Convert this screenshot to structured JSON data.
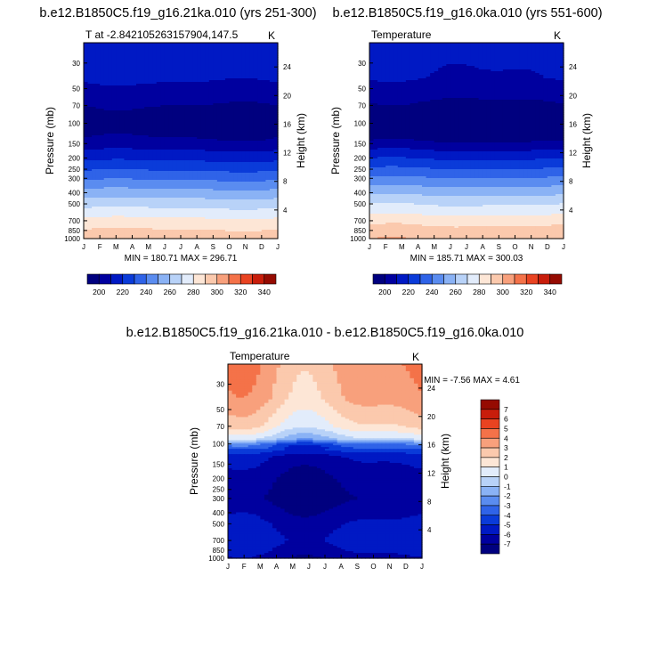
{
  "panels": [
    {
      "title": "b.e12.B1850C5.f19_g16.21ka.010 (yrs 251-300)",
      "left_label": "T at -2.842105263157904,147.5",
      "right_label": "K",
      "ylabel": "Pressure (mb)",
      "ylabel_right": "Height (km)",
      "minmax": "MIN = 180.71 MAX = 296.71"
    },
    {
      "title": "b.e12.B1850C5.f19_g16.0ka.010 (yrs 551-600)",
      "left_label": "Temperature",
      "right_label": "K",
      "ylabel": "Pressure (mb)",
      "ylabel_right": "Height (km)",
      "minmax": "MIN = 185.71 MAX = 300.03"
    },
    {
      "title": "b.e12.B1850C5.f19_g16.21ka.010 - b.e12.B1850C5.f19_g16.0ka.010",
      "left_label": "Temperature",
      "right_label": "K",
      "ylabel": "Pressure (mb)",
      "ylabel_right": "Height (km)",
      "minmax": "MIN =  -7.56 MAX =   4.61"
    }
  ],
  "chart_data": [
    {
      "type": "heatmap",
      "subtype": "filled-contour",
      "x_categories": [
        "J",
        "F",
        "M",
        "A",
        "M",
        "J",
        "J",
        "A",
        "S",
        "O",
        "N",
        "D",
        "J"
      ],
      "y_ticks_pressure": [
        30,
        50,
        70,
        100,
        150,
        200,
        250,
        300,
        400,
        500,
        700,
        850,
        1000
      ],
      "y_ticks_height_km": [
        24,
        20,
        16,
        12,
        8,
        4
      ],
      "levels": [
        200,
        210,
        220,
        230,
        240,
        250,
        260,
        270,
        280,
        290,
        300,
        310,
        320,
        330,
        340
      ],
      "colorbar_labels": [
        "200",
        "220",
        "240",
        "260",
        "280",
        "300",
        "320",
        "340"
      ],
      "palette": [
        "#00007f",
        "#00009f",
        "#0019c4",
        "#0a3bd9",
        "#2f63e8",
        "#5a8cf0",
        "#8ab2f5",
        "#b8d2f8",
        "#e2ecfb",
        "#fde6d6",
        "#fbc9ad",
        "#f8a07c",
        "#f47249",
        "#e94321",
        "#c81d0b",
        "#950b02"
      ],
      "profile_by_pressure": [
        {
          "p": 20,
          "T": 216
        },
        {
          "p": 40,
          "T": 212
        },
        {
          "p": 70,
          "T": 200
        },
        {
          "p": 100,
          "T": 194
        },
        {
          "p": 140,
          "T": 201
        },
        {
          "p": 200,
          "T": 217
        },
        {
          "p": 300,
          "T": 238
        },
        {
          "p": 400,
          "T": 254
        },
        {
          "p": 500,
          "T": 266
        },
        {
          "p": 600,
          "T": 275
        },
        {
          "p": 700,
          "T": 283
        },
        {
          "p": 850,
          "T": 291
        },
        {
          "p": 1000,
          "T": 296
        }
      ]
    },
    {
      "type": "heatmap",
      "subtype": "filled-contour",
      "x_categories": [
        "J",
        "F",
        "M",
        "A",
        "M",
        "J",
        "J",
        "A",
        "S",
        "O",
        "N",
        "D",
        "J"
      ],
      "y_ticks_pressure": [
        30,
        50,
        70,
        100,
        150,
        200,
        250,
        300,
        400,
        500,
        700,
        850,
        1000
      ],
      "y_ticks_height_km": [
        24,
        20,
        16,
        12,
        8,
        4
      ],
      "levels": [
        200,
        210,
        220,
        230,
        240,
        250,
        260,
        270,
        280,
        290,
        300,
        310,
        320,
        330,
        340
      ],
      "colorbar_labels": [
        "200",
        "220",
        "240",
        "260",
        "280",
        "300",
        "320",
        "340"
      ],
      "palette": [
        "#00007f",
        "#00009f",
        "#0019c4",
        "#0a3bd9",
        "#2f63e8",
        "#5a8cf0",
        "#8ab2f5",
        "#b8d2f8",
        "#e2ecfb",
        "#fde6d6",
        "#fbc9ad",
        "#f8a07c",
        "#f47249",
        "#e94321",
        "#c81d0b",
        "#950b02"
      ],
      "profile_by_pressure": [
        {
          "p": 20,
          "T": 213
        },
        {
          "p": 40,
          "T": 210
        },
        {
          "p": 70,
          "T": 198
        },
        {
          "p": 100,
          "T": 192
        },
        {
          "p": 140,
          "T": 199
        },
        {
          "p": 200,
          "T": 219
        },
        {
          "p": 300,
          "T": 241
        },
        {
          "p": 400,
          "T": 257
        },
        {
          "p": 500,
          "T": 269
        },
        {
          "p": 600,
          "T": 278
        },
        {
          "p": 700,
          "T": 286
        },
        {
          "p": 850,
          "T": 294
        },
        {
          "p": 1000,
          "T": 299
        }
      ]
    },
    {
      "type": "heatmap",
      "subtype": "filled-contour",
      "x_categories": [
        "J",
        "F",
        "M",
        "A",
        "M",
        "J",
        "J",
        "A",
        "S",
        "O",
        "N",
        "D",
        "J"
      ],
      "y_ticks_pressure": [
        30,
        50,
        70,
        100,
        150,
        200,
        250,
        300,
        400,
        500,
        700,
        850,
        1000
      ],
      "y_ticks_height_km": [
        24,
        20,
        16,
        12,
        8,
        4
      ],
      "levels": [
        -7,
        -6,
        -5,
        -4,
        -3,
        -2,
        -1,
        0,
        1,
        2,
        3,
        4,
        5,
        6,
        7
      ],
      "colorbar_labels": [
        "7",
        "6",
        "5",
        "4",
        "3",
        "2",
        "1",
        "0",
        "-1",
        "-2",
        "-3",
        "-4",
        "-5",
        "-6",
        "-7"
      ],
      "palette": [
        "#00007f",
        "#00009f",
        "#0019c4",
        "#0a3bd9",
        "#2f63e8",
        "#5a8cf0",
        "#8ab2f5",
        "#b8d2f8",
        "#e2ecfb",
        "#fde6d6",
        "#fbc9ad",
        "#f8a07c",
        "#f47249",
        "#e94321",
        "#c81d0b",
        "#950b02"
      ],
      "profile_by_pressure": [
        {
          "p": 20,
          "T": 3.5
        },
        {
          "p": 40,
          "T": 3.0
        },
        {
          "p": 70,
          "T": 1.5
        },
        {
          "p": 90,
          "T": -0.5
        },
        {
          "p": 100,
          "T": -3.5
        },
        {
          "p": 130,
          "T": -6.0
        },
        {
          "p": 200,
          "T": -6.8
        },
        {
          "p": 300,
          "T": -7.2
        },
        {
          "p": 400,
          "T": -6.5
        },
        {
          "p": 500,
          "T": -6.0
        },
        {
          "p": 700,
          "T": -5.5
        },
        {
          "p": 850,
          "T": -6.0
        },
        {
          "p": 1000,
          "T": -6.5
        }
      ]
    }
  ]
}
